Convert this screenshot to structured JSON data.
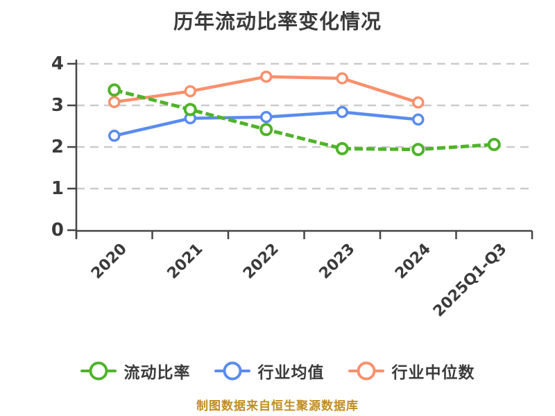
{
  "footer": {
    "caption": "制图数据来自恒生聚源数据库"
  },
  "colors": {
    "background": "#ffffff",
    "text": "#3a3a3a",
    "axis": "#444444",
    "grid": "#cbcbcb",
    "marker_fill": "#ffffff",
    "caption": "#c08c20"
  },
  "chart_data": {
    "type": "line",
    "title": "历年流动比率变化情况",
    "categories": [
      "2020",
      "2021",
      "2022",
      "2023",
      "2024",
      "2025Q1-Q3"
    ],
    "series": [
      {
        "name": "流动比率",
        "key": "current-ratio",
        "color": "#4fb32a",
        "line_style": "dashed",
        "marker": "open-circle",
        "values": [
          3.37,
          2.9,
          2.42,
          1.96,
          1.94,
          2.06
        ]
      },
      {
        "name": "行业均值",
        "key": "industry-average",
        "color": "#5a8cee",
        "line_style": "solid",
        "marker": "open-circle",
        "values": [
          2.27,
          2.69,
          2.72,
          2.84,
          2.66,
          null
        ]
      },
      {
        "name": "行业中位数",
        "key": "industry-median",
        "color": "#f9906c",
        "line_style": "solid",
        "marker": "open-circle",
        "values": [
          3.08,
          3.34,
          3.69,
          3.65,
          3.07,
          null
        ]
      }
    ],
    "xlabel": "",
    "ylabel": "",
    "ylim": [
      0,
      4
    ],
    "yticks": [
      0,
      1,
      2,
      3,
      4
    ],
    "x_label_rotation": 45,
    "grid": "horizontal-dashed",
    "legend_position": "bottom"
  }
}
